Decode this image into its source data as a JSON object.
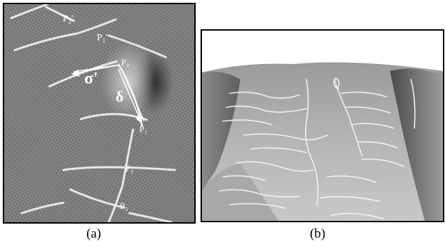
{
  "figure": {
    "panel_a": {
      "caption": "(a)",
      "points": {
        "p2_prime": "P₂'",
        "p1_prime": "P₁'",
        "p0": "P₀",
        "p1": "P₁",
        "p2": "P₂",
        "p3": "P₃"
      },
      "vectors": {
        "sigma_prime": "σ'",
        "delta": "δ"
      }
    },
    "panel_b": {
      "caption": "(b)"
    }
  }
}
